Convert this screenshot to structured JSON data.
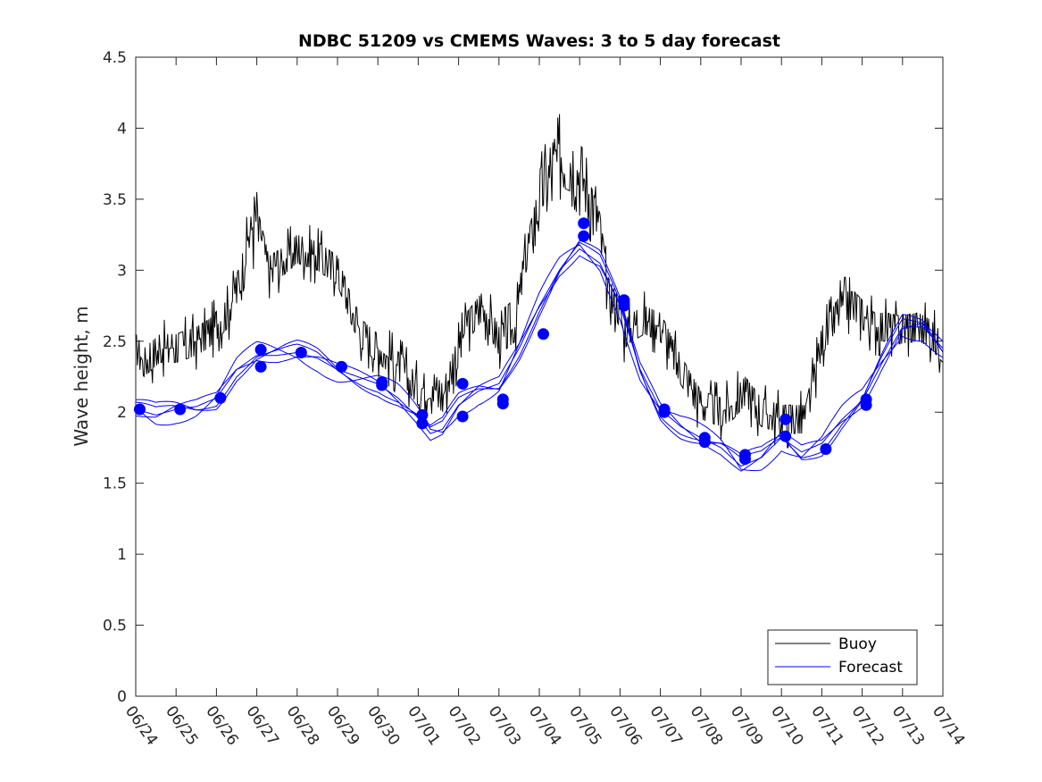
{
  "chart_data": {
    "type": "line",
    "title": "NDBC 51209 vs CMEMS Waves: 3 to 5 day forecast",
    "xlabel": "",
    "ylabel": "Wave height, m",
    "xlim": [
      "06/24",
      "07/14"
    ],
    "ylim": [
      0,
      4.5
    ],
    "yticks": [
      "0",
      "0.5",
      "1",
      "1.5",
      "2",
      "2.5",
      "3",
      "3.5",
      "4",
      "4.5"
    ],
    "xticks": [
      "06/24",
      "06/25",
      "06/26",
      "06/27",
      "06/28",
      "06/29",
      "06/30",
      "07/01",
      "07/02",
      "07/03",
      "07/04",
      "07/05",
      "07/06",
      "07/07",
      "07/08",
      "07/09",
      "07/10",
      "07/11",
      "07/12",
      "07/13",
      "07/14"
    ],
    "grid": false,
    "legend": {
      "location": "bottom-right",
      "entries": [
        {
          "label": "Buoy",
          "color": "#000000"
        },
        {
          "label": "Forecast",
          "color": "#0000ff"
        }
      ]
    },
    "colors": {
      "buoy": "#000000",
      "forecast": "#0000ff"
    },
    "series": [
      {
        "name": "Buoy",
        "x_unit": "days since 06/24",
        "x": [
          0,
          0.2,
          0.4,
          0.6,
          1.0,
          1.5,
          1.8,
          2.3,
          2.6,
          2.8,
          3.0,
          3.3,
          3.6,
          4.0,
          4.5,
          5.0,
          5.3,
          5.6,
          6.0,
          6.6,
          7.0,
          7.3,
          7.6,
          7.9,
          8.2,
          8.6,
          9.0,
          9.4,
          9.6,
          10.0,
          10.5,
          10.8,
          11.1,
          11.5,
          11.7,
          12.0,
          12.1,
          12.3,
          12.6,
          13.0,
          13.5,
          14.0,
          14.5,
          14.8,
          15.1,
          15.5,
          16.0,
          16.6,
          17.0,
          17.5,
          17.8,
          18.3,
          18.6,
          18.9,
          19.4,
          19.7,
          20.0
        ],
        "y": [
          2.45,
          2.35,
          2.4,
          2.45,
          2.45,
          2.5,
          2.55,
          2.7,
          2.95,
          3.25,
          3.35,
          3.0,
          3.05,
          3.15,
          3.1,
          3.0,
          2.75,
          2.55,
          2.45,
          2.3,
          2.15,
          2.2,
          2.1,
          2.35,
          2.6,
          2.75,
          2.5,
          2.6,
          3.0,
          3.5,
          3.8,
          3.75,
          3.65,
          3.3,
          2.85,
          2.7,
          2.55,
          2.6,
          2.65,
          2.6,
          2.3,
          2.05,
          2.0,
          2.05,
          2.15,
          2.0,
          1.95,
          1.95,
          2.5,
          2.75,
          2.75,
          2.6,
          2.6,
          2.58,
          2.6,
          2.55,
          2.45
        ]
      },
      {
        "name": "Forecast",
        "x_unit": "days since 06/24",
        "x": [
          0,
          0.5,
          1.0,
          1.5,
          2.0,
          2.5,
          3.0,
          3.5,
          4.0,
          4.5,
          5.0,
          5.5,
          6.0,
          6.5,
          7.0,
          7.3,
          7.6,
          8.0,
          8.5,
          9.0,
          9.5,
          10.0,
          10.5,
          11.0,
          11.5,
          12.0,
          12.5,
          13.0,
          13.5,
          14.0,
          14.5,
          15.0,
          15.5,
          16.0,
          16.5,
          17.0,
          17.5,
          18.0,
          18.5,
          19.0,
          19.5,
          20.0
        ],
        "y": [
          2.02,
          1.98,
          2.02,
          2.04,
          2.1,
          2.3,
          2.4,
          2.4,
          2.42,
          2.38,
          2.3,
          2.25,
          2.2,
          2.1,
          1.96,
          1.85,
          1.88,
          2.05,
          2.15,
          2.2,
          2.45,
          2.75,
          3.0,
          3.15,
          3.05,
          2.75,
          2.3,
          2.02,
          1.9,
          1.82,
          1.75,
          1.62,
          1.68,
          1.82,
          1.72,
          1.78,
          1.95,
          2.08,
          2.35,
          2.6,
          2.6,
          2.45
        ]
      },
      {
        "name": "Forecast points",
        "x_unit": "days since 06/24",
        "x": [
          0.1,
          1.1,
          2.1,
          3.1,
          3.1,
          4.1,
          5.1,
          6.1,
          6.1,
          7.1,
          7.1,
          8.1,
          8.1,
          9.1,
          9.1,
          10.1,
          11.1,
          11.1,
          12.1,
          12.1,
          13.1,
          13.1,
          14.1,
          14.1,
          15.1,
          15.1,
          16.1,
          16.1,
          17.1,
          18.1,
          18.1
        ],
        "y": [
          2.02,
          2.02,
          2.1,
          2.44,
          2.32,
          2.42,
          2.32,
          2.21,
          2.19,
          1.98,
          1.92,
          2.2,
          1.97,
          2.09,
          2.06,
          2.55,
          3.33,
          3.24,
          2.79,
          2.75,
          2.02,
          2.0,
          1.82,
          1.79,
          1.7,
          1.67,
          1.95,
          1.83,
          1.74,
          2.09,
          2.05
        ]
      }
    ]
  }
}
